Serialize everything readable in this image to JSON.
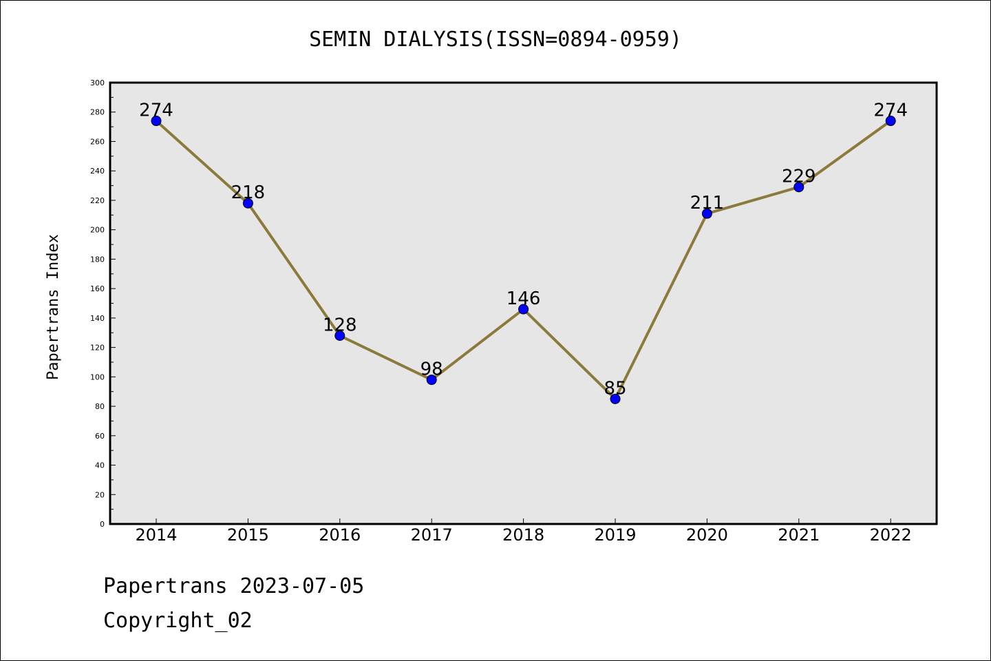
{
  "chart_data": {
    "type": "line",
    "title": "SEMIN DIALYSIS(ISSN=0894-0959)",
    "xlabel": "",
    "ylabel": "Papertrans Index",
    "categories": [
      "2014",
      "2015",
      "2016",
      "2017",
      "2018",
      "2019",
      "2020",
      "2021",
      "2022"
    ],
    "series": [
      {
        "values": [
          274,
          218,
          128,
          98,
          146,
          85,
          211,
          229,
          274
        ]
      }
    ],
    "ylim": [
      0,
      300
    ],
    "yticks": [
      "0",
      "20",
      "40",
      "60",
      "80",
      "100",
      "120",
      "140",
      "160",
      "180",
      "200",
      "220",
      "240",
      "260",
      "280",
      "300"
    ],
    "grid": false,
    "colors": {
      "line": "#8c7a3a",
      "marker": "#0000ff",
      "plot_background": "#e6e6e6",
      "frame": "#000000"
    }
  },
  "footer": {
    "line1": "Papertrans 2023-07-05",
    "line2": "Copyright_02"
  }
}
